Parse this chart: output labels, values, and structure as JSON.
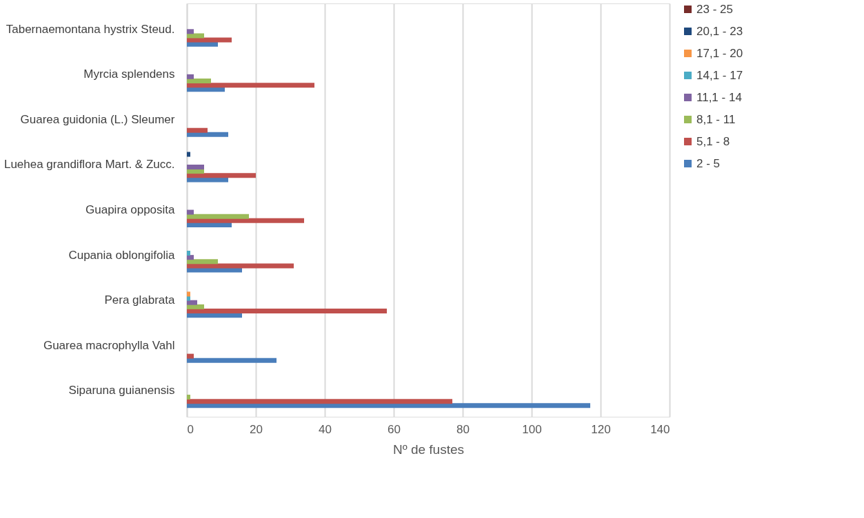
{
  "chart_data": {
    "type": "bar",
    "orientation": "horizontal",
    "xlabel": "Nº de fustes",
    "categories": [
      "Tabernaemontana hystrix Steud.",
      "Myrcia splendens",
      "Guarea guidonia (L.) Sleumer",
      "Luehea grandiflora Mart. & Zucc.",
      "Guapira opposita",
      "Cupania oblongifolia",
      "Pera glabrata",
      "Guarea macrophylla Vahl",
      "Siparuna guianensis"
    ],
    "series": [
      {
        "name": "2 - 5",
        "color": "#4a7ebb",
        "values": [
          9,
          11,
          12,
          12,
          13,
          16,
          16,
          26,
          117
        ]
      },
      {
        "name": "5,1 - 8",
        "color": "#c0504d",
        "values": [
          13,
          37,
          6,
          20,
          34,
          31,
          58,
          2,
          77
        ]
      },
      {
        "name": "8,1 - 11",
        "color": "#9bbb59",
        "values": [
          5,
          7,
          0,
          5,
          18,
          9,
          5,
          0,
          1
        ]
      },
      {
        "name": "11,1 - 14",
        "color": "#8064a2",
        "values": [
          2,
          2,
          0,
          5,
          2,
          2,
          3,
          0,
          0
        ]
      },
      {
        "name": "14,1 - 17",
        "color": "#4bacc6",
        "values": [
          0,
          0,
          0,
          0,
          0,
          1,
          1,
          0,
          0
        ]
      },
      {
        "name": "17,1 - 20",
        "color": "#f79646",
        "values": [
          0,
          0,
          0,
          0,
          0,
          0,
          1,
          0,
          0
        ]
      },
      {
        "name": "20,1 - 23",
        "color": "#1f497d",
        "values": [
          0,
          0,
          0,
          1,
          0,
          0,
          0,
          0,
          0
        ]
      },
      {
        "name": "23 - 25",
        "color": "#772c2a",
        "values": [
          0,
          0,
          0,
          0,
          0,
          0,
          0,
          0,
          0
        ]
      }
    ],
    "xlim": [
      0,
      140
    ],
    "xticks": [
      0,
      20,
      40,
      60,
      80,
      100,
      120,
      140
    ],
    "grid": "x",
    "legend": "right"
  }
}
